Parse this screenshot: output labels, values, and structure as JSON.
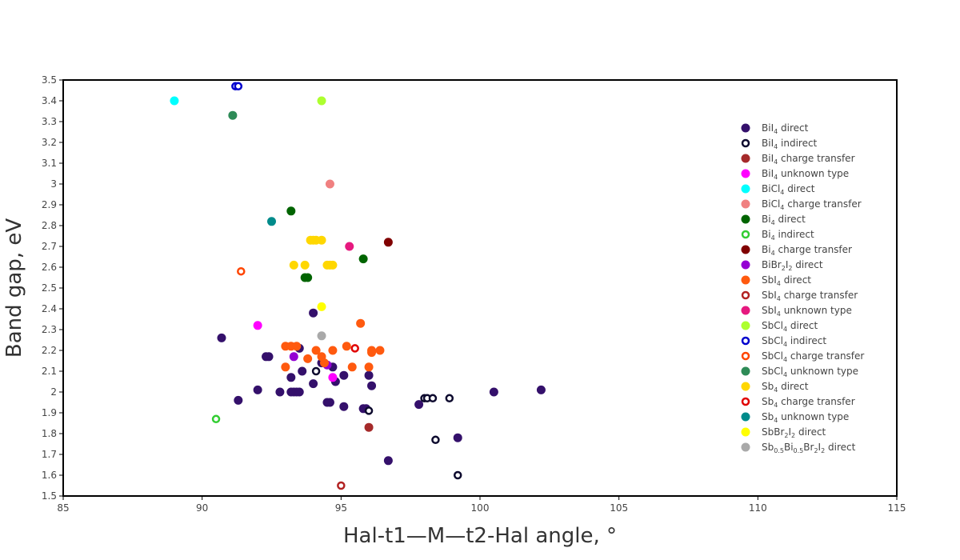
{
  "chart_data": {
    "type": "scatter",
    "xlabel": "Hal-t1—M—t2-Hal angle, °",
    "ylabel": "Band gap, eV",
    "xlim": [
      85,
      115
    ],
    "ylim": [
      1.5,
      3.5
    ],
    "x_ticks": [
      85,
      90,
      95,
      100,
      105,
      110,
      115
    ],
    "y_ticks": [
      1.5,
      1.6,
      1.7,
      1.8,
      1.9,
      2,
      2.1,
      2.2,
      2.3,
      2.4,
      2.5,
      2.6,
      2.7,
      2.8,
      2.9,
      3,
      3.1,
      3.2,
      3.3,
      3.4,
      3.5
    ],
    "grid": false,
    "legend_position": "right",
    "series": [
      {
        "label": [
          [
            "BiI",
            ""
          ],
          [
            "4",
            "sub"
          ],
          [
            " direct",
            ""
          ]
        ],
        "color": "#34106b",
        "marker": "filled",
        "points": [
          [
            90.7,
            2.26
          ],
          [
            91.3,
            1.96
          ],
          [
            92.0,
            2.01
          ],
          [
            92.3,
            2.17
          ],
          [
            92.4,
            2.17
          ],
          [
            92.8,
            2.0
          ],
          [
            93.2,
            2.0
          ],
          [
            93.3,
            2.0
          ],
          [
            93.4,
            2.0
          ],
          [
            93.5,
            2.0
          ],
          [
            93.2,
            2.07
          ],
          [
            93.5,
            2.21
          ],
          [
            93.6,
            2.1
          ],
          [
            94.0,
            2.04
          ],
          [
            94.0,
            2.38
          ],
          [
            94.3,
            2.14
          ],
          [
            94.5,
            1.95
          ],
          [
            94.6,
            1.95
          ],
          [
            94.7,
            2.12
          ],
          [
            94.8,
            2.05
          ],
          [
            95.1,
            1.93
          ],
          [
            95.1,
            2.08
          ],
          [
            95.8,
            1.92
          ],
          [
            95.9,
            1.92
          ],
          [
            96.0,
            2.08
          ],
          [
            96.1,
            2.03
          ],
          [
            96.7,
            1.67
          ],
          [
            97.8,
            1.94
          ],
          [
            99.2,
            1.78
          ],
          [
            100.5,
            2.0
          ],
          [
            102.2,
            2.01
          ]
        ]
      },
      {
        "label": [
          [
            "BiI",
            ""
          ],
          [
            "4",
            "sub"
          ],
          [
            " indirect",
            ""
          ]
        ],
        "color": "#0d0a2e",
        "marker": "open",
        "points": [
          [
            94.1,
            2.1
          ],
          [
            96.0,
            1.91
          ],
          [
            98.0,
            1.97
          ],
          [
            98.1,
            1.97
          ],
          [
            98.3,
            1.97
          ],
          [
            98.4,
            1.77
          ],
          [
            98.9,
            1.97
          ],
          [
            99.2,
            1.6
          ]
        ]
      },
      {
        "label": [
          [
            "BiI",
            ""
          ],
          [
            "4",
            "sub"
          ],
          [
            " charge transfer",
            ""
          ]
        ],
        "color": "#a52a2a",
        "marker": "filled",
        "points": [
          [
            96.0,
            1.83
          ]
        ]
      },
      {
        "label": [
          [
            "BiI",
            ""
          ],
          [
            "4",
            "sub"
          ],
          [
            " unknown type",
            ""
          ]
        ],
        "color": "#ff00ff",
        "marker": "filled",
        "points": [
          [
            92.0,
            2.32
          ],
          [
            94.7,
            2.07
          ]
        ]
      },
      {
        "label": [
          [
            "BiCl",
            ""
          ],
          [
            "4",
            "sub"
          ],
          [
            " direct",
            ""
          ]
        ],
        "color": "#00ffff",
        "marker": "filled",
        "points": [
          [
            89.0,
            3.4
          ]
        ]
      },
      {
        "label": [
          [
            "BiCl",
            ""
          ],
          [
            "4",
            "sub"
          ],
          [
            " charge transfer",
            ""
          ]
        ],
        "color": "#f08080",
        "marker": "filled",
        "points": [
          [
            94.6,
            3.0
          ]
        ]
      },
      {
        "label": [
          [
            "Bi",
            ""
          ],
          [
            "4",
            "sub"
          ],
          [
            " direct",
            ""
          ]
        ],
        "color": "#006400",
        "marker": "filled",
        "points": [
          [
            93.2,
            2.87
          ],
          [
            93.7,
            2.55
          ],
          [
            93.8,
            2.55
          ],
          [
            95.8,
            2.64
          ]
        ]
      },
      {
        "label": [
          [
            "Bi",
            ""
          ],
          [
            "4",
            "sub"
          ],
          [
            " indirect",
            ""
          ]
        ],
        "color": "#32cd32",
        "marker": "open",
        "points": [
          [
            90.5,
            1.87
          ]
        ]
      },
      {
        "label": [
          [
            "Bi",
            ""
          ],
          [
            "4",
            "sub"
          ],
          [
            " charge transfer",
            ""
          ]
        ],
        "color": "#800000",
        "marker": "filled",
        "points": [
          [
            96.7,
            2.72
          ]
        ]
      },
      {
        "label": [
          [
            "BiBr",
            ""
          ],
          [
            "2",
            "sub"
          ],
          [
            "I",
            ""
          ],
          [
            "2",
            "sub"
          ],
          [
            " direct",
            ""
          ]
        ],
        "color": "#9400d3",
        "marker": "filled",
        "points": [
          [
            93.3,
            2.17
          ],
          [
            94.5,
            2.13
          ]
        ]
      },
      {
        "label": [
          [
            "SbI",
            ""
          ],
          [
            "4",
            "sub"
          ],
          [
            " direct",
            ""
          ]
        ],
        "color": "#ff5a0f",
        "marker": "filled",
        "points": [
          [
            93.0,
            2.22
          ],
          [
            93.0,
            2.12
          ],
          [
            93.2,
            2.22
          ],
          [
            93.4,
            2.22
          ],
          [
            93.8,
            2.16
          ],
          [
            94.1,
            2.2
          ],
          [
            94.3,
            2.17
          ],
          [
            94.4,
            2.14
          ],
          [
            94.7,
            2.2
          ],
          [
            95.2,
            2.22
          ],
          [
            95.4,
            2.12
          ],
          [
            95.7,
            2.33
          ],
          [
            96.0,
            2.12
          ],
          [
            96.1,
            2.2
          ],
          [
            96.1,
            2.19
          ],
          [
            96.4,
            2.2
          ]
        ]
      },
      {
        "label": [
          [
            "SbI",
            ""
          ],
          [
            "4",
            "sub"
          ],
          [
            " charge transfer",
            ""
          ]
        ],
        "color": "#b22222",
        "marker": "open",
        "points": [
          [
            95.0,
            1.55
          ]
        ]
      },
      {
        "label": [
          [
            "SbI",
            ""
          ],
          [
            "4",
            "sub"
          ],
          [
            " unknown type",
            ""
          ]
        ],
        "color": "#e6197f",
        "marker": "filled",
        "points": [
          [
            95.3,
            2.7
          ]
        ]
      },
      {
        "label": [
          [
            "SbCl",
            ""
          ],
          [
            "4",
            "sub"
          ],
          [
            " direct",
            ""
          ]
        ],
        "color": "#adff2f",
        "marker": "filled",
        "points": [
          [
            94.3,
            3.4
          ]
        ]
      },
      {
        "label": [
          [
            "SbCl",
            ""
          ],
          [
            "4",
            "sub"
          ],
          [
            " indirect",
            ""
          ]
        ],
        "color": "#0000cd",
        "marker": "open",
        "points": [
          [
            91.2,
            3.47
          ],
          [
            91.3,
            3.47
          ]
        ]
      },
      {
        "label": [
          [
            "SbCl",
            ""
          ],
          [
            "4",
            "sub"
          ],
          [
            " charge transfer",
            ""
          ]
        ],
        "color": "#ff4500",
        "marker": "open",
        "points": [
          [
            91.4,
            2.58
          ]
        ]
      },
      {
        "label": [
          [
            "SbCl",
            ""
          ],
          [
            "4",
            "sub"
          ],
          [
            " unknown type",
            ""
          ]
        ],
        "color": "#2e8b57",
        "marker": "filled",
        "points": [
          [
            91.1,
            3.33
          ]
        ]
      },
      {
        "label": [
          [
            "Sb",
            ""
          ],
          [
            "4",
            "sub"
          ],
          [
            " direct",
            ""
          ]
        ],
        "color": "#ffd700",
        "marker": "filled",
        "points": [
          [
            93.3,
            2.61
          ],
          [
            93.7,
            2.61
          ],
          [
            93.9,
            2.73
          ],
          [
            94.0,
            2.73
          ],
          [
            94.1,
            2.73
          ],
          [
            94.3,
            2.73
          ],
          [
            94.5,
            2.61
          ],
          [
            94.6,
            2.61
          ],
          [
            94.7,
            2.61
          ]
        ]
      },
      {
        "label": [
          [
            "Sb",
            ""
          ],
          [
            "4",
            "sub"
          ],
          [
            " charge transfer",
            ""
          ]
        ],
        "color": "#e00000",
        "marker": "open",
        "points": [
          [
            95.5,
            2.21
          ]
        ]
      },
      {
        "label": [
          [
            "Sb",
            ""
          ],
          [
            "4",
            "sub"
          ],
          [
            " unknown type",
            ""
          ]
        ],
        "color": "#008b8b",
        "marker": "filled",
        "points": [
          [
            92.5,
            2.82
          ]
        ]
      },
      {
        "label": [
          [
            "SbBr",
            ""
          ],
          [
            "2",
            "sub"
          ],
          [
            "I",
            ""
          ],
          [
            "2",
            "sub"
          ],
          [
            " direct",
            ""
          ]
        ],
        "color": "#ffff00",
        "marker": "filled",
        "points": [
          [
            94.3,
            2.41
          ]
        ]
      },
      {
        "label": [
          [
            "Sb",
            ""
          ],
          [
            "0.5",
            "sub"
          ],
          [
            "Bi",
            ""
          ],
          [
            "0.5",
            "sub"
          ],
          [
            "Br",
            ""
          ],
          [
            "2",
            "sub"
          ],
          [
            "I",
            ""
          ],
          [
            "2",
            "sub"
          ],
          [
            " direct",
            ""
          ]
        ],
        "color": "#a9a9a9",
        "marker": "filled",
        "points": [
          [
            94.3,
            2.27
          ]
        ]
      }
    ]
  }
}
